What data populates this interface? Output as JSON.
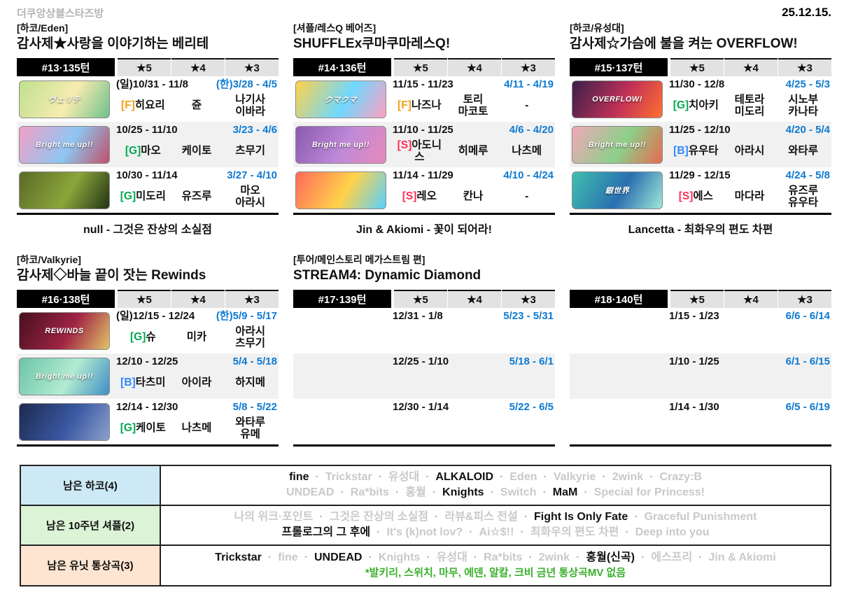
{
  "page": {
    "site_name": "더쿠앙상블스타즈방",
    "date": "25.12.15."
  },
  "colors": {
    "date_blue": "#0d7ad2",
    "tag_F": "#f0a11a",
    "tag_G": "#00a84f",
    "tag_S": "#ff2d55",
    "tag_B": "#2f88ff",
    "inactive_gray": "#c9c9c9",
    "note_green": "#3ab02c"
  },
  "blocks": [
    {
      "tag": "[하코/Eden]",
      "title": "감사제★사랑을 이야기하는 베리테",
      "turn": "#13·135턴",
      "columns": [
        "★5",
        "★4",
        "★3"
      ],
      "footer": "null - 그것은 잔상의 소실점",
      "rows": [
        {
          "banner": {
            "label": "ヴェリテ",
            "colors": [
              "#bfe08e",
              "#f7ecb0",
              "#6fc08a"
            ]
          },
          "date_jp": "(일)10/31 - 11/8",
          "date_kr": "(한)3/28 - 4/5",
          "star5": {
            "tag": "F",
            "name": "히요리"
          },
          "star4": [
            "쥰"
          ],
          "star3": [
            "나기사",
            "이바라"
          ]
        },
        {
          "banner": {
            "label": "Bright me up!!",
            "colors": [
              "#f2a0c8",
              "#8ec6f2",
              "#c0506a"
            ]
          },
          "date_jp": "10/25 - 11/10",
          "date_kr": "3/23 - 4/6",
          "star5": {
            "tag": "G",
            "name": "마오"
          },
          "star4": [
            "케이토"
          ],
          "star3": [
            "츠무기"
          ]
        },
        {
          "banner": {
            "label": "",
            "colors": [
              "#5a6a28",
              "#8aa63a",
              "#233314"
            ]
          },
          "date_jp": "10/30 - 11/14",
          "date_kr": "3/27 - 4/10",
          "star5": {
            "tag": "G",
            "name": "미도리"
          },
          "star4": [
            "유즈루"
          ],
          "star3": [
            "마오",
            "아라시"
          ]
        }
      ]
    },
    {
      "tag": "[셔플/레스Q 베어즈]",
      "title": "SHUFFLEx쿠마쿠마레스Q!",
      "turn": "#14·136턴",
      "columns": [
        "★5",
        "★4",
        "★3"
      ],
      "footer": "Jin & Akiomi - 꽃이 되어라!",
      "rows": [
        {
          "banner": {
            "label": "クマクマ",
            "colors": [
              "#ffd24a",
              "#6fd8ff",
              "#ff9fc0"
            ]
          },
          "date_jp": "11/15 - 11/23",
          "date_kr": "4/11 - 4/19",
          "star5": {
            "tag": "F",
            "name": "나즈나"
          },
          "star4": [
            "토리",
            "마코토"
          ],
          "star3": [
            "-"
          ]
        },
        {
          "banner": {
            "label": "Bright me up!!",
            "colors": [
              "#8a5ab0",
              "#c08ad8",
              "#e88ab8"
            ]
          },
          "date_jp": "11/10 - 11/25",
          "date_kr": "4/6 - 4/20",
          "star5": {
            "tag": "S",
            "name": "아도니스"
          },
          "star4": [
            "히메루"
          ],
          "star3": [
            "나츠메"
          ]
        },
        {
          "banner": {
            "label": "",
            "colors": [
              "#ff6a5a",
              "#ffd24a",
              "#58d0ff"
            ]
          },
          "date_jp": "11/14 - 11/29",
          "date_kr": "4/10 - 4/24",
          "star5": {
            "tag": "S",
            "name": "레오"
          },
          "star4": [
            "칸나"
          ],
          "star3": [
            "-"
          ]
        }
      ]
    },
    {
      "tag": "[하코/유성대]",
      "title": "감사제☆가슴에 불을 켜는 OVERFLOW!",
      "turn": "#15·137턴",
      "columns": [
        "★5",
        "★4",
        "★3"
      ],
      "footer": "Lancetta - 최화우의 편도 차편",
      "rows": [
        {
          "banner": {
            "label": "OVERFLOW!",
            "colors": [
              "#38204a",
              "#c03058",
              "#ff7030"
            ]
          },
          "date_jp": "11/30 - 12/8",
          "date_kr": "4/25 - 5/3",
          "star5": {
            "tag": "G",
            "name": "치아키"
          },
          "star4": [
            "테토라",
            "미도리"
          ],
          "star3": [
            "시노부",
            "카나타"
          ]
        },
        {
          "banner": {
            "label": "Bright me up!!",
            "colors": [
              "#f0a8b8",
              "#8cd08a",
              "#e86a50"
            ]
          },
          "date_jp": "11/25 - 12/10",
          "date_kr": "4/20 - 5/4",
          "star5": {
            "tag": "B",
            "name": "유우타"
          },
          "star4": [
            "아라시"
          ],
          "star3": [
            "와타루"
          ]
        },
        {
          "banner": {
            "label": "銀世界",
            "colors": [
              "#3fbfae",
              "#2a6fb0",
              "#9fe8d8"
            ]
          },
          "date_jp": "11/29 - 12/15",
          "date_kr": "4/24 - 5/8",
          "star5": {
            "tag": "S",
            "name": "에스"
          },
          "star4": [
            "마다라"
          ],
          "star3": [
            "유즈루",
            "유우타"
          ]
        }
      ]
    },
    {
      "tag": "[하코/Valkyrie]",
      "title": "감사제◇바늘 끝이 잣는 Rewinds",
      "turn": "#16·138턴",
      "columns": [
        "★5",
        "★4",
        "★3"
      ],
      "footer": "",
      "rows": [
        {
          "banner": {
            "label": "REWINDS",
            "colors": [
              "#46101e",
              "#a02444",
              "#e2c46a"
            ]
          },
          "date_jp": "(일)12/15 - 12/24",
          "date_kr": "(한)5/9 - 5/17",
          "star5": {
            "tag": "G",
            "name": "슈"
          },
          "star4": [
            "미카"
          ],
          "star3": [
            "아라시",
            "츠무기"
          ]
        },
        {
          "banner": {
            "label": "Bright me up!!",
            "colors": [
              "#6cc4a8",
              "#b2ecd2",
              "#3f8ec4"
            ]
          },
          "date_jp": "12/10 - 12/25",
          "date_kr": "5/4 - 5/18",
          "star5": {
            "tag": "B",
            "name": "타츠미"
          },
          "star4": [
            "아이라"
          ],
          "star3": [
            "하지메"
          ]
        },
        {
          "banner": {
            "label": "",
            "colors": [
              "#1c2a4e",
              "#3a58a2",
              "#8aa0cc"
            ]
          },
          "date_jp": "12/14 - 12/30",
          "date_kr": "5/8 - 5/22",
          "star5": {
            "tag": "G",
            "name": "케이토"
          },
          "star4": [
            "나츠메"
          ],
          "star3": [
            "와타루",
            "유메"
          ]
        }
      ]
    },
    {
      "tag": "[투어/메인스토리 메가스트림 편]",
      "title": "STREAM4: Dynamic Diamond",
      "turn": "#17·139턴",
      "columns": [
        "★5",
        "★4",
        "★3"
      ],
      "footer": "",
      "rows": [
        {
          "banner": null,
          "date_jp": "12/31 - 1/8",
          "date_kr": "5/23 - 5/31",
          "star5": null,
          "star4": null,
          "star3": null
        },
        {
          "banner": null,
          "date_jp": "12/25 - 1/10",
          "date_kr": "5/18 - 6/1",
          "star5": null,
          "star4": null,
          "star3": null
        },
        {
          "banner": null,
          "date_jp": "12/30 - 1/14",
          "date_kr": "5/22 - 6/5",
          "star5": null,
          "star4": null,
          "star3": null
        }
      ]
    },
    {
      "tag": "",
      "title": "",
      "turn": "#18·140턴",
      "columns": [
        "★5",
        "★4",
        "★3"
      ],
      "footer": "",
      "rows": [
        {
          "banner": null,
          "date_jp": "1/15 - 1/23",
          "date_kr": "6/6 - 6/14",
          "star5": null,
          "star4": null,
          "star3": null
        },
        {
          "banner": null,
          "date_jp": "1/10 - 1/25",
          "date_kr": "6/1 - 6/15",
          "star5": null,
          "star4": null,
          "star3": null
        },
        {
          "banner": null,
          "date_jp": "1/14 - 1/30",
          "date_kr": "6/5 - 6/19",
          "star5": null,
          "star4": null,
          "star3": null
        }
      ]
    }
  ],
  "summary": {
    "rows": [
      {
        "label": "남은 하코(4)",
        "bg": "#cde9f6",
        "lines": [
          [
            {
              "text": "fine",
              "active": true
            },
            {
              "text": "Trickstar",
              "active": false
            },
            {
              "text": "유성대",
              "active": false
            },
            {
              "text": "ALKALOID",
              "active": true
            },
            {
              "text": "Eden",
              "active": false
            },
            {
              "text": "Valkyrie",
              "active": false
            },
            {
              "text": "2wink",
              "active": false
            },
            {
              "text": "Crazy:B",
              "active": false
            }
          ],
          [
            {
              "text": "UNDEAD",
              "active": false
            },
            {
              "text": "Ra*bits",
              "active": false
            },
            {
              "text": "홍월",
              "active": false
            },
            {
              "text": "Knights",
              "active": true
            },
            {
              "text": "Switch",
              "active": false
            },
            {
              "text": "MaM",
              "active": true
            },
            {
              "text": "Special for Princess!",
              "active": false
            }
          ]
        ],
        "note": ""
      },
      {
        "label": "남은 10주년 셔플(2)",
        "bg": "#dcf3d6",
        "lines": [
          [
            {
              "text": "나의 위크·포인트",
              "active": false
            },
            {
              "text": "그것은 잔상의 소실점",
              "active": false
            },
            {
              "text": "라뷰&피스 전설",
              "active": false
            },
            {
              "text": "Fight Is Only Fate",
              "active": true
            },
            {
              "text": "Graceful Punishment",
              "active": false
            }
          ],
          [
            {
              "text": "프롤로그의 그 후에",
              "active": true
            },
            {
              "text": "It's (k)not lov?",
              "active": false
            },
            {
              "text": "Ai☆$!!",
              "active": false
            },
            {
              "text": "최화우의 편도 차편",
              "active": false
            },
            {
              "text": "Deep into you",
              "active": false
            }
          ]
        ],
        "note": ""
      },
      {
        "label": "남은 유닛 통상곡(3)",
        "bg": "#fde5d2",
        "lines": [
          [
            {
              "text": "Trickstar",
              "active": true
            },
            {
              "text": "fine",
              "active": false
            },
            {
              "text": "UNDEAD",
              "active": true
            },
            {
              "text": "Knights",
              "active": false
            },
            {
              "text": "유성대",
              "active": false
            },
            {
              "text": "Ra*bits",
              "active": false
            },
            {
              "text": "2wink",
              "active": false
            },
            {
              "text": "홍월(신곡)",
              "active": true
            },
            {
              "text": "에스프리",
              "active": false
            },
            {
              "text": "Jin & Akiomi",
              "active": false
            }
          ]
        ],
        "note": "*발키리, 스위치, 마무, 에덴, 알칼, 크비 금년 통상곡MV 없음"
      }
    ]
  }
}
